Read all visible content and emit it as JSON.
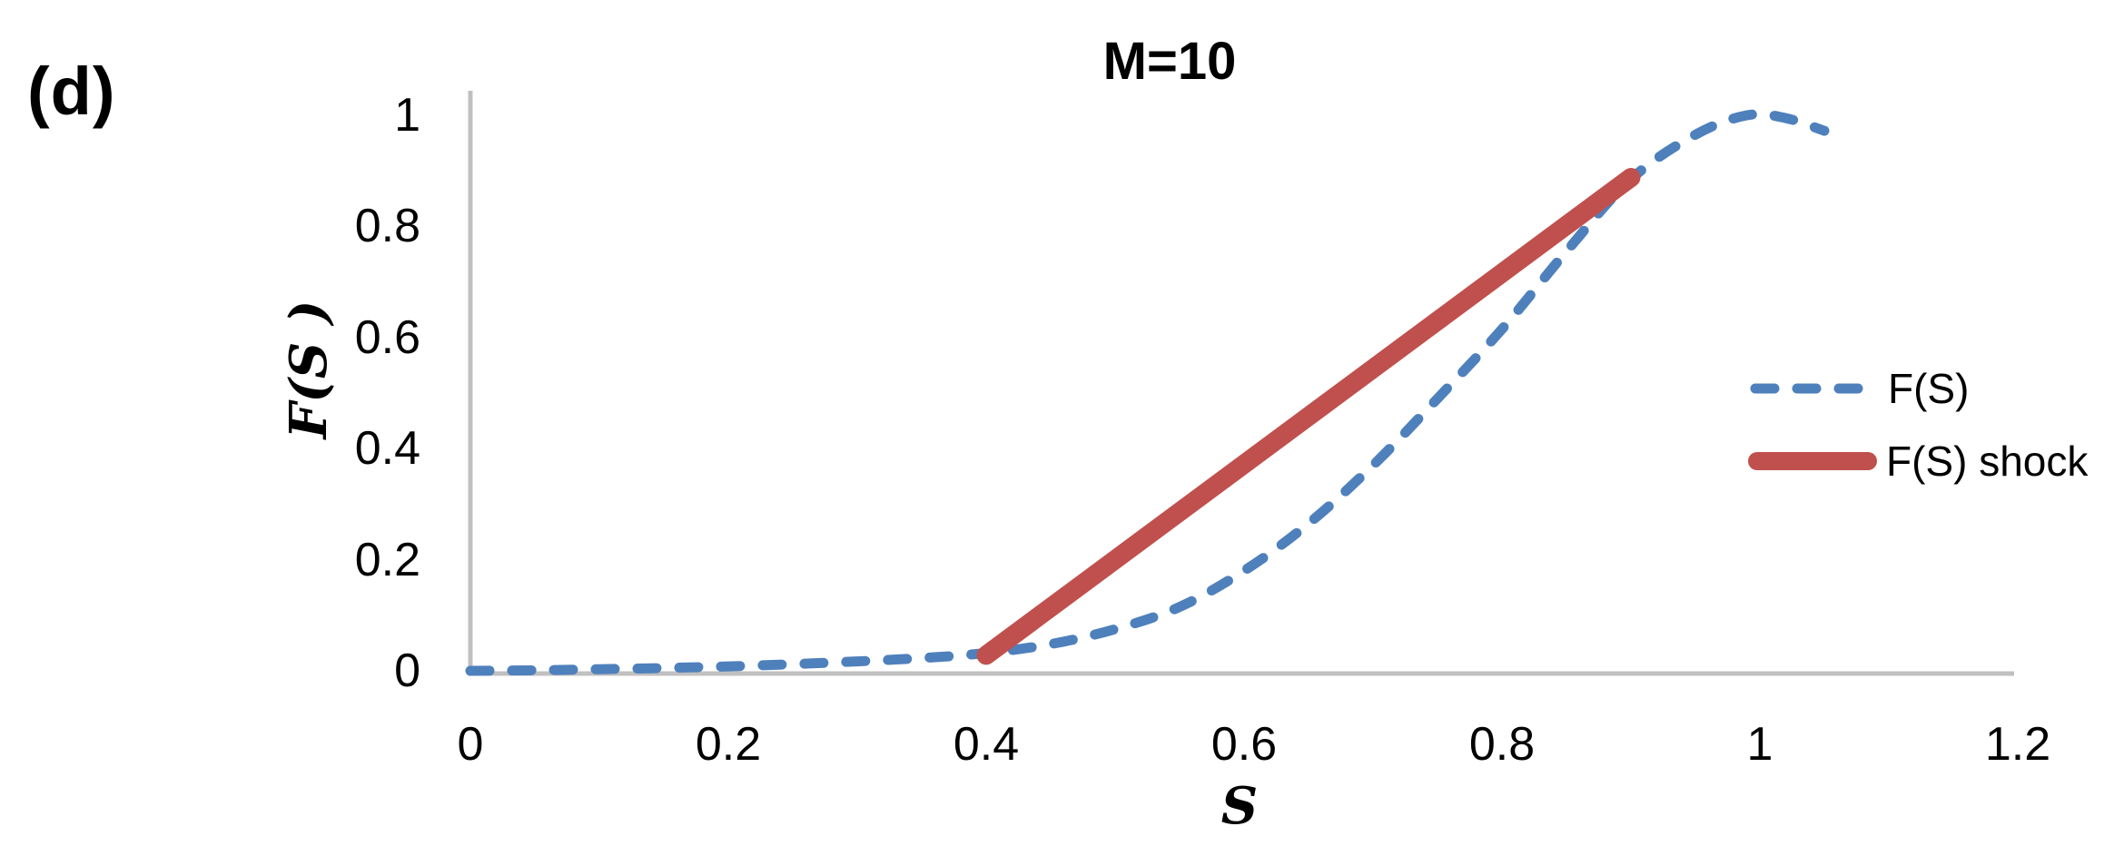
{
  "figure": {
    "panel_label": "(d)",
    "title": "M=10"
  },
  "axes": {
    "x": {
      "label": "S",
      "tick_labels": [
        "0",
        "0.2",
        "0.4",
        "0.6",
        "0.8",
        "1",
        "1.2"
      ],
      "tick_values": [
        0,
        0.2,
        0.4,
        0.6,
        0.8,
        1,
        1.2
      ]
    },
    "y": {
      "label": "F(S )",
      "tick_labels": [
        "0",
        "0.2",
        "0.4",
        "0.6",
        "0.8",
        "1"
      ],
      "tick_values": [
        0,
        0.2,
        0.4,
        0.6,
        0.8,
        1
      ]
    }
  },
  "legend": {
    "items": [
      {
        "label": "F(S)",
        "style": "dashed",
        "color": "#4E80BC"
      },
      {
        "label": "F(S) shock",
        "style": "solid",
        "color": "#C0504D"
      }
    ]
  },
  "colors": {
    "curve_blue": "#4E80BC",
    "shock_red": "#C0504D",
    "axis_gray": "#C0C0C0",
    "text_black": "#000000"
  },
  "chart_data": {
    "type": "line",
    "title": "M=10",
    "xlabel": "S",
    "ylabel": "F(S )",
    "xlim": [
      0,
      1.2
    ],
    "ylim": [
      0,
      1
    ],
    "grid": false,
    "legend_position": "right",
    "series": [
      {
        "name": "F(S)",
        "style": "dashed",
        "color": "#4E80BC",
        "x": [
          0,
          0.05,
          0.1,
          0.15,
          0.2,
          0.25,
          0.3,
          0.35,
          0.4,
          0.45,
          0.5,
          0.55,
          0.6,
          0.65,
          0.7,
          0.75,
          0.8,
          0.85,
          0.9,
          0.95,
          0.99,
          1.02,
          1.05
        ],
        "y": [
          0,
          0.001,
          0.003,
          0.005,
          0.008,
          0.012,
          0.017,
          0.023,
          0.032,
          0.048,
          0.075,
          0.115,
          0.18,
          0.265,
          0.37,
          0.49,
          0.615,
          0.755,
          0.885,
          0.965,
          1.0,
          0.995,
          0.972
        ]
      },
      {
        "name": "F(S) shock",
        "style": "solid",
        "color": "#C0504D",
        "x": [
          0.4,
          0.9
        ],
        "y": [
          0.028,
          0.888
        ]
      }
    ]
  }
}
